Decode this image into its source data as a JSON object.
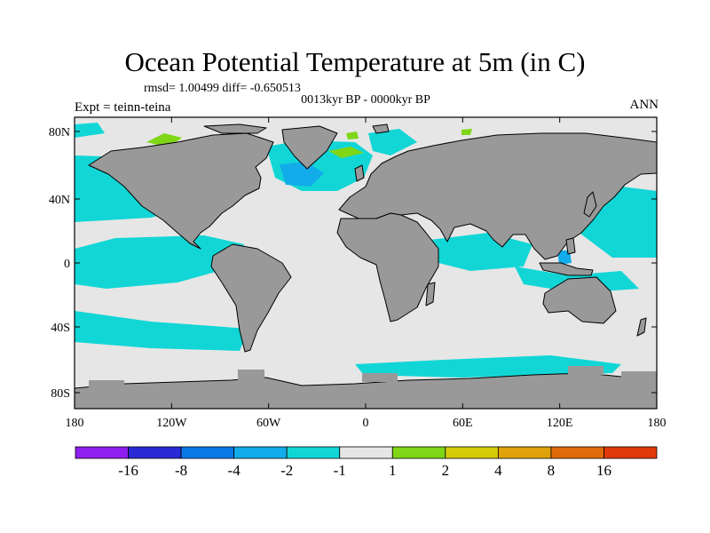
{
  "title": "Ocean Potential Temperature at 5m (in C)",
  "stats": "rmsd= 1.00499 diff= -0.650513",
  "period": "0013kyr BP - 0000kyr BP",
  "experiment": "Expt = teinn-teina",
  "season": "ANN",
  "axes": {
    "lon_ticks": [
      "180",
      "120W",
      "60W",
      "0",
      "60E",
      "120E",
      "180"
    ],
    "lat_ticks": [
      "80N",
      "40N",
      "0",
      "40S",
      "80S"
    ]
  },
  "colorbar": {
    "colors": [
      "#8f1ff0",
      "#2a2ad6",
      "#0a78e6",
      "#12acea",
      "#12d6d6",
      "#e6e6e6",
      "#7fd617",
      "#d6cc0a",
      "#e0a20a",
      "#e06a0a",
      "#e03a0a"
    ],
    "labels": [
      "-16",
      "-8",
      "-4",
      "-2",
      "-1",
      "1",
      "2",
      "4",
      "8",
      "16"
    ]
  },
  "map_colors": {
    "land": "#999999",
    "ocean_neutral": "#e6e6e6",
    "cool_anomaly": "#12d6d6",
    "strong_cool": "#12acea",
    "warm_anomaly": "#7fd617",
    "coast": "#000000"
  }
}
